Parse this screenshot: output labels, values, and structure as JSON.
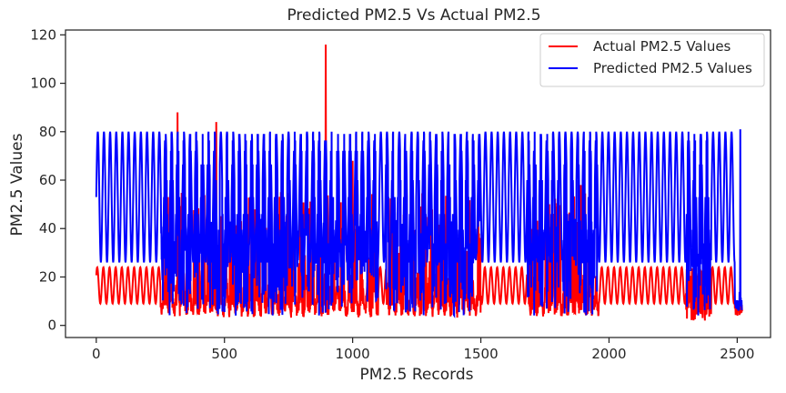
{
  "chart_data": {
    "type": "line",
    "title": "Predicted PM2.5  Vs Actual PM2.5",
    "xlabel": "PM2.5 Records",
    "ylabel": "PM2.5 Values",
    "xlim": [
      -120,
      2630
    ],
    "ylim": [
      -5,
      122
    ],
    "xticks": [
      0,
      500,
      1000,
      1500,
      2000,
      2500
    ],
    "yticks": [
      0,
      20,
      40,
      60,
      80,
      100,
      120
    ],
    "grid": false,
    "legend_position": "top-right",
    "n_points": 2520,
    "series": [
      {
        "name": "Actual PM2.5 Values",
        "color": "#ff0000",
        "pattern": "oscillating ~9-24 baseline, dips to ~2 and rises to ~50-65 between records 250-1900",
        "peaks": [
          {
            "x": 317,
            "y": 88
          },
          {
            "x": 468,
            "y": 84
          },
          {
            "x": 895,
            "y": 116
          },
          {
            "x": 1000,
            "y": 68
          },
          {
            "x": 1890,
            "y": 58
          },
          {
            "x": 720,
            "y": 55
          }
        ]
      },
      {
        "name": "Predicted PM2.5 Values",
        "color": "#0000ff",
        "pattern": "rapid oscillation between ~26 and ~80, deeper swings to ~4 after record 250",
        "range": [
          4,
          81
        ]
      }
    ]
  }
}
